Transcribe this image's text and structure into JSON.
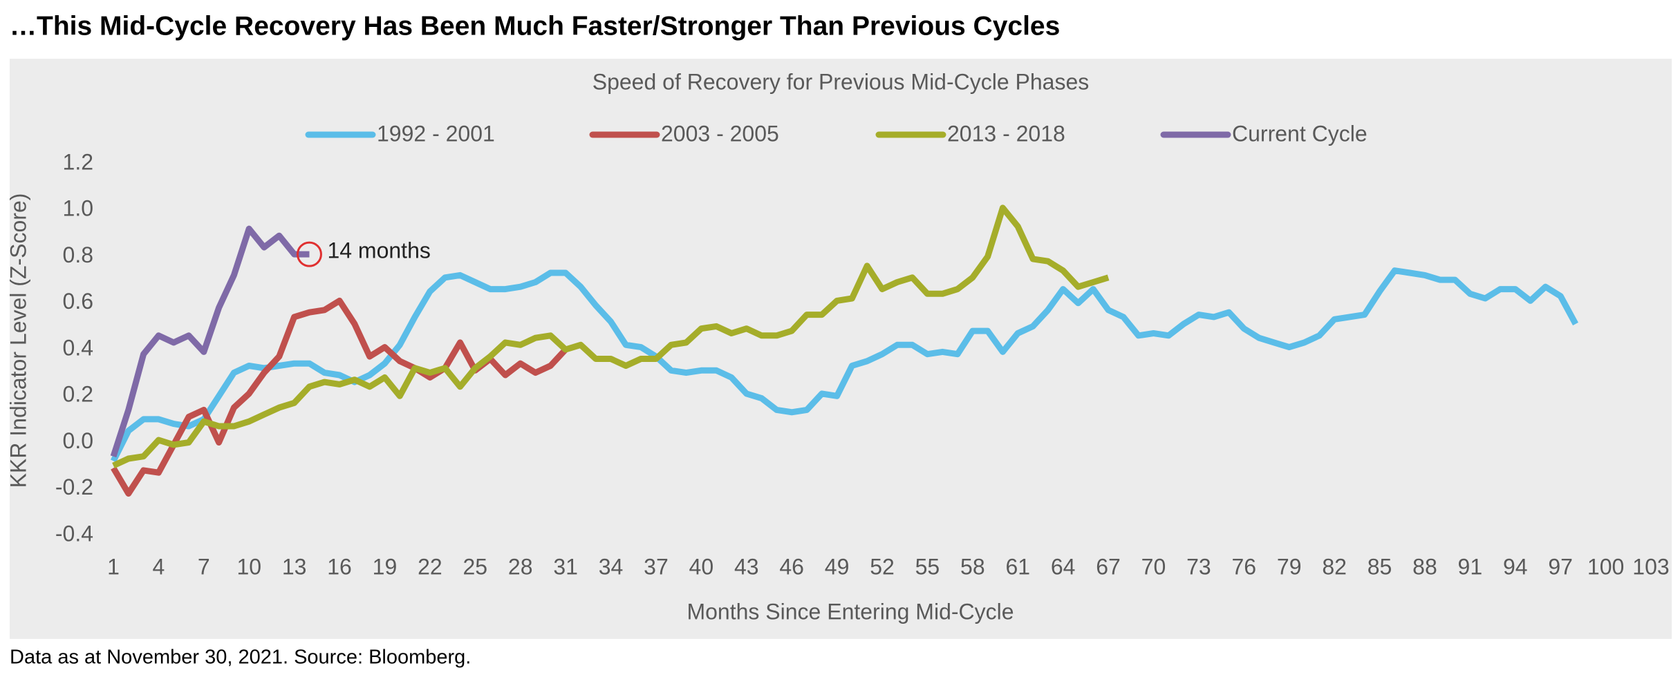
{
  "header": {
    "title": "…This Mid-Cycle Recovery Has Been Much Faster/Stronger Than Previous Cycles"
  },
  "chart_data": {
    "type": "line",
    "title": "Speed of Recovery for Previous Mid-Cycle Phases",
    "x_label": "Months Since Entering Mid-Cycle",
    "y_label": "KKR Indicator Level (Z-Score)",
    "xlim": [
      1,
      103
    ],
    "xticks": [
      1,
      4,
      7,
      10,
      13,
      16,
      19,
      22,
      25,
      28,
      31,
      34,
      37,
      40,
      43,
      46,
      49,
      52,
      55,
      58,
      61,
      64,
      67,
      70,
      73,
      76,
      79,
      82,
      85,
      88,
      91,
      94,
      97,
      100,
      103
    ],
    "ylim": [
      -0.4,
      1.2
    ],
    "yticks": [
      {
        "value": 1.2,
        "label": "1.2"
      },
      {
        "value": 1,
        "label": "1.0"
      },
      0.8,
      0.6,
      0.4,
      0.2,
      {
        "value": 0,
        "label": "0.0"
      },
      -0.2,
      -0.4
    ],
    "grid": false,
    "legend": "top",
    "series": [
      {
        "name": "1992 - 2001",
        "color": "#5bbde8",
        "x": [
          1,
          2,
          3,
          4,
          5,
          6,
          7,
          8,
          9,
          10,
          11,
          12,
          13,
          14,
          15,
          16,
          17,
          18,
          19,
          20,
          21,
          22,
          23,
          24,
          25,
          26,
          27,
          28,
          29,
          30,
          31,
          32,
          33,
          34,
          35,
          36,
          37,
          38,
          39,
          40,
          41,
          42,
          43,
          44,
          45,
          46,
          47,
          48,
          49,
          50,
          51,
          52,
          53,
          54,
          55,
          56,
          57,
          58,
          59,
          60,
          61,
          62,
          63,
          64,
          65,
          66,
          67,
          68,
          69,
          70,
          71,
          72,
          73,
          74,
          75,
          76,
          77,
          78,
          79,
          80,
          81,
          82,
          83,
          84,
          85,
          86,
          87,
          88,
          89,
          90,
          91,
          92,
          93,
          94,
          95,
          96,
          97,
          98
        ],
        "values": [
          -0.08,
          0.05,
          0.1,
          0.1,
          0.08,
          0.07,
          0.1,
          0.2,
          0.3,
          0.33,
          0.32,
          0.33,
          0.34,
          0.34,
          0.3,
          0.29,
          0.26,
          0.29,
          0.34,
          0.42,
          0.54,
          0.65,
          0.71,
          0.72,
          0.69,
          0.66,
          0.66,
          0.67,
          0.69,
          0.73,
          0.73,
          0.67,
          0.59,
          0.52,
          0.42,
          0.41,
          0.37,
          0.31,
          0.3,
          0.31,
          0.31,
          0.28,
          0.21,
          0.19,
          0.14,
          0.13,
          0.14,
          0.21,
          0.2,
          0.33,
          0.35,
          0.38,
          0.42,
          0.42,
          0.38,
          0.39,
          0.38,
          0.48,
          0.48,
          0.39,
          0.47,
          0.5,
          0.57,
          0.66,
          0.6,
          0.66,
          0.57,
          0.54,
          0.46,
          0.47,
          0.46,
          0.51,
          0.55,
          0.54,
          0.56,
          0.49,
          0.45,
          0.43,
          0.41,
          0.43,
          0.46,
          0.53,
          0.54,
          0.55,
          0.65,
          0.74,
          0.73,
          0.72,
          0.7,
          0.7,
          0.64,
          0.62,
          0.66,
          0.66,
          0.61,
          0.67,
          0.63,
          0.51
        ]
      },
      {
        "name": "2003 - 2005",
        "color": "#c0504d",
        "x": [
          1,
          2,
          3,
          4,
          5,
          6,
          7,
          8,
          9,
          10,
          11,
          12,
          13,
          14,
          15,
          16,
          17,
          18,
          19,
          20,
          21,
          22,
          23,
          24,
          25,
          26,
          27,
          28,
          29,
          30,
          31
        ],
        "values": [
          -0.11,
          -0.22,
          -0.12,
          -0.13,
          -0.01,
          0.11,
          0.14,
          0,
          0.15,
          0.21,
          0.3,
          0.37,
          0.54,
          0.56,
          0.57,
          0.61,
          0.51,
          0.37,
          0.41,
          0.35,
          0.32,
          0.28,
          0.32,
          0.43,
          0.31,
          0.36,
          0.29,
          0.34,
          0.3,
          0.33,
          0.4
        ]
      },
      {
        "name": "2013 - 2018",
        "color": "#a5ad2a",
        "x": [
          1,
          2,
          3,
          4,
          5,
          6,
          7,
          8,
          9,
          10,
          11,
          12,
          13,
          14,
          15,
          16,
          17,
          18,
          19,
          20,
          21,
          22,
          23,
          24,
          25,
          26,
          27,
          28,
          29,
          30,
          31,
          32,
          33,
          34,
          35,
          36,
          37,
          38,
          39,
          40,
          41,
          42,
          43,
          44,
          45,
          46,
          47,
          48,
          49,
          50,
          51,
          52,
          53,
          54,
          55,
          56,
          57,
          58,
          59,
          60,
          61,
          62,
          63,
          64,
          65,
          66,
          67
        ],
        "values": [
          -0.1,
          -0.07,
          -0.06,
          0.01,
          -0.01,
          0,
          0.09,
          0.07,
          0.07,
          0.09,
          0.12,
          0.15,
          0.17,
          0.24,
          0.26,
          0.25,
          0.27,
          0.24,
          0.28,
          0.2,
          0.32,
          0.3,
          0.32,
          0.24,
          0.32,
          0.37,
          0.43,
          0.42,
          0.45,
          0.46,
          0.4,
          0.42,
          0.36,
          0.36,
          0.33,
          0.36,
          0.36,
          0.42,
          0.43,
          0.49,
          0.5,
          0.47,
          0.49,
          0.46,
          0.46,
          0.48,
          0.55,
          0.55,
          0.61,
          0.62,
          0.76,
          0.66,
          0.69,
          0.71,
          0.64,
          0.64,
          0.66,
          0.71,
          0.8,
          1.01,
          0.93,
          0.79,
          0.78,
          0.74,
          0.67,
          0.69,
          0.71
        ]
      },
      {
        "name": "Current Cycle",
        "color": "#7f6aa7",
        "x": [
          1,
          2,
          3,
          4,
          5,
          6,
          7,
          8,
          9,
          10,
          11,
          12,
          13,
          14
        ],
        "values": [
          -0.06,
          0.14,
          0.38,
          0.46,
          0.43,
          0.46,
          0.39,
          0.58,
          0.72,
          0.92,
          0.84,
          0.89,
          0.81,
          0.81
        ]
      }
    ],
    "annotation": {
      "text": "14 months",
      "x": 14,
      "y": 0.81,
      "color": "#e03030"
    }
  },
  "footer": {
    "text": "Data as at November 30, 2021. Source: Bloomberg."
  }
}
